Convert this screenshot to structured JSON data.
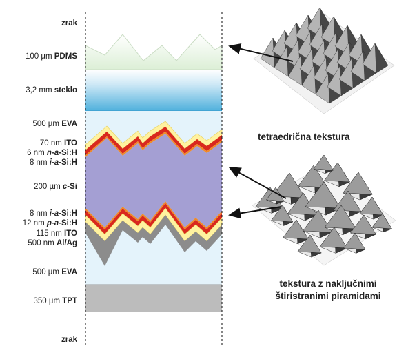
{
  "layers": [
    {
      "thickness": "",
      "name": "zrak",
      "name_style": "bold"
    },
    {
      "thickness": "100 µm",
      "name": "PDMS",
      "name_style": "bold"
    },
    {
      "thickness": "3,2 mm",
      "name": "steklo",
      "name_style": "bold"
    },
    {
      "thickness": "500 µm",
      "name": "EVA",
      "name_style": "bold"
    },
    {
      "thickness": "70 nm",
      "name": "ITO",
      "name_style": "bold"
    },
    {
      "thickness": "6 nm",
      "name_prefix": "n-a",
      "name": "-Si:H",
      "name_style": "italic-prefix"
    },
    {
      "thickness": "8 nm",
      "name_prefix": "i-a",
      "name": "-Si:H",
      "name_style": "italic-prefix"
    },
    {
      "thickness": "200 µm",
      "name_prefix": "c",
      "name": "-Si",
      "name_style": "italic-prefix"
    },
    {
      "thickness": "8 nm",
      "name_prefix": "i-a",
      "name": "-Si:H",
      "name_style": "italic-prefix"
    },
    {
      "thickness": "12 nm",
      "name_prefix": "p-a",
      "name": "-Si:H",
      "name_style": "italic-prefix"
    },
    {
      "thickness": "115 nm",
      "name": "ITO",
      "name_style": "bold"
    },
    {
      "thickness": "500 nm",
      "name": "Al/Ag",
      "name_style": "bold"
    },
    {
      "thickness": "500 µm",
      "name": "EVA",
      "name_style": "bold"
    },
    {
      "thickness": "350 µm",
      "name": "TPT",
      "name_style": "bold"
    },
    {
      "thickness": "",
      "name": "zrak",
      "name_style": "bold"
    }
  ],
  "textures": {
    "top_caption": "tetraedrična tekstura",
    "bottom_caption_line1": "tekstura z naključnimi",
    "bottom_caption_line2": "štiristranimi piramidami"
  },
  "colors": {
    "pdms": "#e8f3e4",
    "glass_top": "#bfe3f2",
    "glass_bottom": "#58b4de",
    "eva": "#e2f2fb",
    "ito": "#fff3a6",
    "n_layer": "#d9281e",
    "i_layer": "#f08a2a",
    "c_si": "#a29ed2",
    "p_layer": "#d9281e",
    "metal": "#8a8a8a",
    "tpt": "#bdbdbd"
  }
}
